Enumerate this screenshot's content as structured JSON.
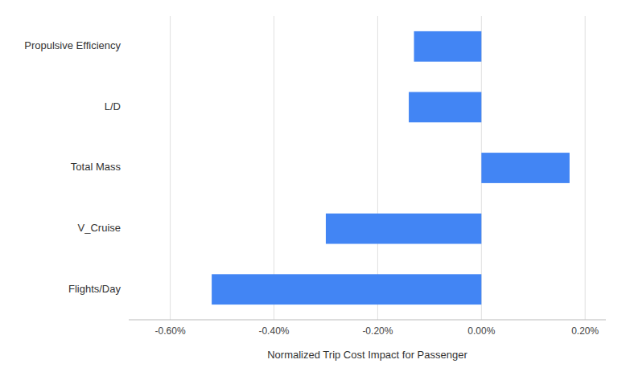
{
  "chart_data": {
    "type": "bar",
    "orientation": "horizontal",
    "categories": [
      "Propulsive Efficiency",
      "L/D",
      "Total Mass",
      "V_Cruise",
      "Flights/Day"
    ],
    "values": [
      -0.0013,
      -0.0014,
      0.0017,
      -0.003,
      -0.0052
    ],
    "color": "#4285F4",
    "xlabel": "Normalized Trip Cost Impact for Passenger",
    "xlim": [
      -0.0068,
      0.0024
    ],
    "xticks": [
      {
        "value": -0.006,
        "label": "-0.60%"
      },
      {
        "value": -0.004,
        "label": "-0.40%"
      },
      {
        "value": -0.002,
        "label": "-0.20%"
      },
      {
        "value": 0.0,
        "label": "0.00%"
      },
      {
        "value": 0.002,
        "label": "0.20%"
      }
    ],
    "grid": true
  }
}
